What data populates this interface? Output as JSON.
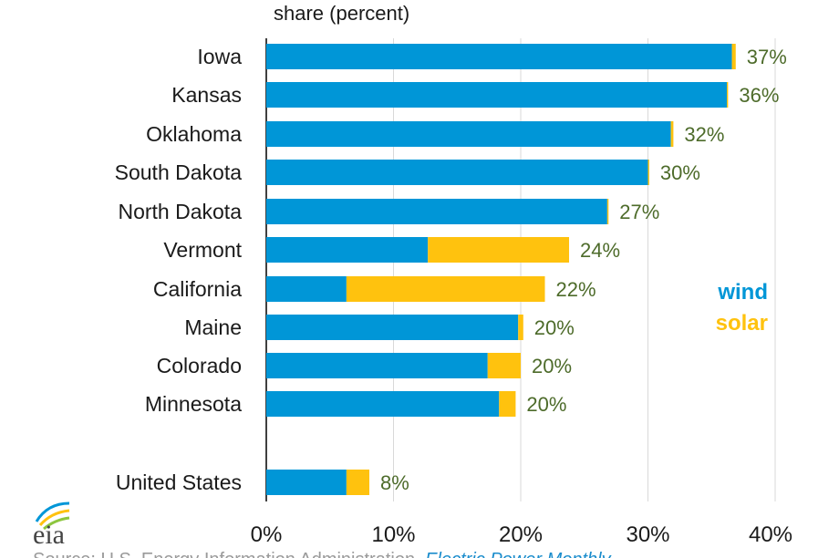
{
  "colors": {
    "wind": "#0096D7",
    "solar": "#FFC20E",
    "grid": "#d9d9d9",
    "axis": "#000000",
    "value_label": "#4d6b2a"
  },
  "logo": {
    "text": "eia"
  },
  "chart_data": {
    "type": "bar",
    "orientation": "horizontal",
    "stacked": true,
    "unit_label": "share (percent)",
    "categories": [
      "Iowa",
      "Kansas",
      "Oklahoma",
      "South Dakota",
      "North Dakota",
      "Vermont",
      "California",
      "Maine",
      "Colorado",
      "Minnesota",
      "United States"
    ],
    "series": [
      {
        "name": "wind",
        "values": [
          36.6,
          36.2,
          31.8,
          30.0,
          26.8,
          12.7,
          6.3,
          19.8,
          17.4,
          18.3,
          6.3
        ]
      },
      {
        "name": "solar",
        "values": [
          0.3,
          0.1,
          0.2,
          0.1,
          0.1,
          11.1,
          15.6,
          0.4,
          2.6,
          1.3,
          1.8
        ]
      }
    ],
    "totals_labels": [
      "37%",
      "36%",
      "32%",
      "30%",
      "27%",
      "24%",
      "22%",
      "20%",
      "20%",
      "20%",
      "8%"
    ],
    "xlim": [
      0,
      40
    ],
    "xticks": [
      "0%",
      "10%",
      "20%",
      "30%",
      "40%"
    ],
    "xtick_values": [
      0,
      10,
      20,
      30,
      40
    ],
    "grid": true,
    "legend": {
      "placement": "right",
      "entries": [
        "wind",
        "solar"
      ]
    }
  },
  "source": {
    "prefix": "Source: U.S. Energy Information Administration, ",
    "link": "Electric Power Monthly"
  }
}
